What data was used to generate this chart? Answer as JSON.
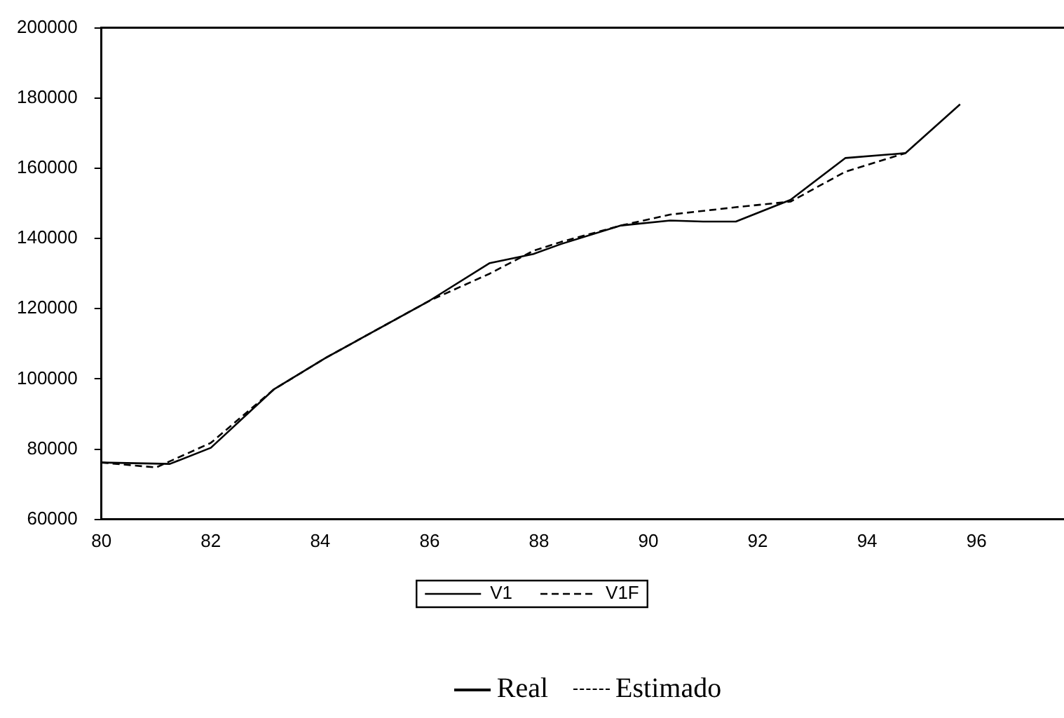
{
  "chart_data": {
    "type": "line",
    "series": [
      {
        "name": "V1",
        "color": "#000000",
        "line_style": "solid",
        "x": [
          80,
          81.25,
          82,
          83.15,
          84.1,
          86,
          87.1,
          87.9,
          88.4,
          89.5,
          90.4,
          91,
          91.6,
          92.6,
          93.6,
          94.7,
          95.7
        ],
        "values": [
          76200,
          75800,
          80400,
          97000,
          106000,
          122300,
          133000,
          135600,
          138400,
          143700,
          145100,
          144800,
          144800,
          151000,
          162900,
          164300,
          178200
        ]
      },
      {
        "name": "V1F",
        "color": "#000000",
        "line_style": "dashed",
        "x": [
          80,
          81,
          82,
          83.15,
          84.1,
          86,
          87.1,
          87.9,
          88.4,
          89.5,
          90.4,
          91.6,
          92.6,
          93.6,
          94.7
        ],
        "values": [
          76200,
          74800,
          81800,
          97000,
          106000,
          122300,
          130000,
          136500,
          139000,
          143700,
          146800,
          148900,
          150500,
          159000,
          164300
        ]
      }
    ],
    "xlim": [
      80,
      97.6
    ],
    "xticks": [
      80,
      82,
      84,
      86,
      88,
      90,
      92,
      94,
      96
    ],
    "ylim": [
      60000,
      200000
    ],
    "yticks": [
      60000,
      80000,
      100000,
      120000,
      140000,
      160000,
      180000,
      200000
    ],
    "grid": false,
    "legend": "bottom",
    "marker": "none",
    "annotations": [
      "Real",
      "Estimado"
    ]
  }
}
